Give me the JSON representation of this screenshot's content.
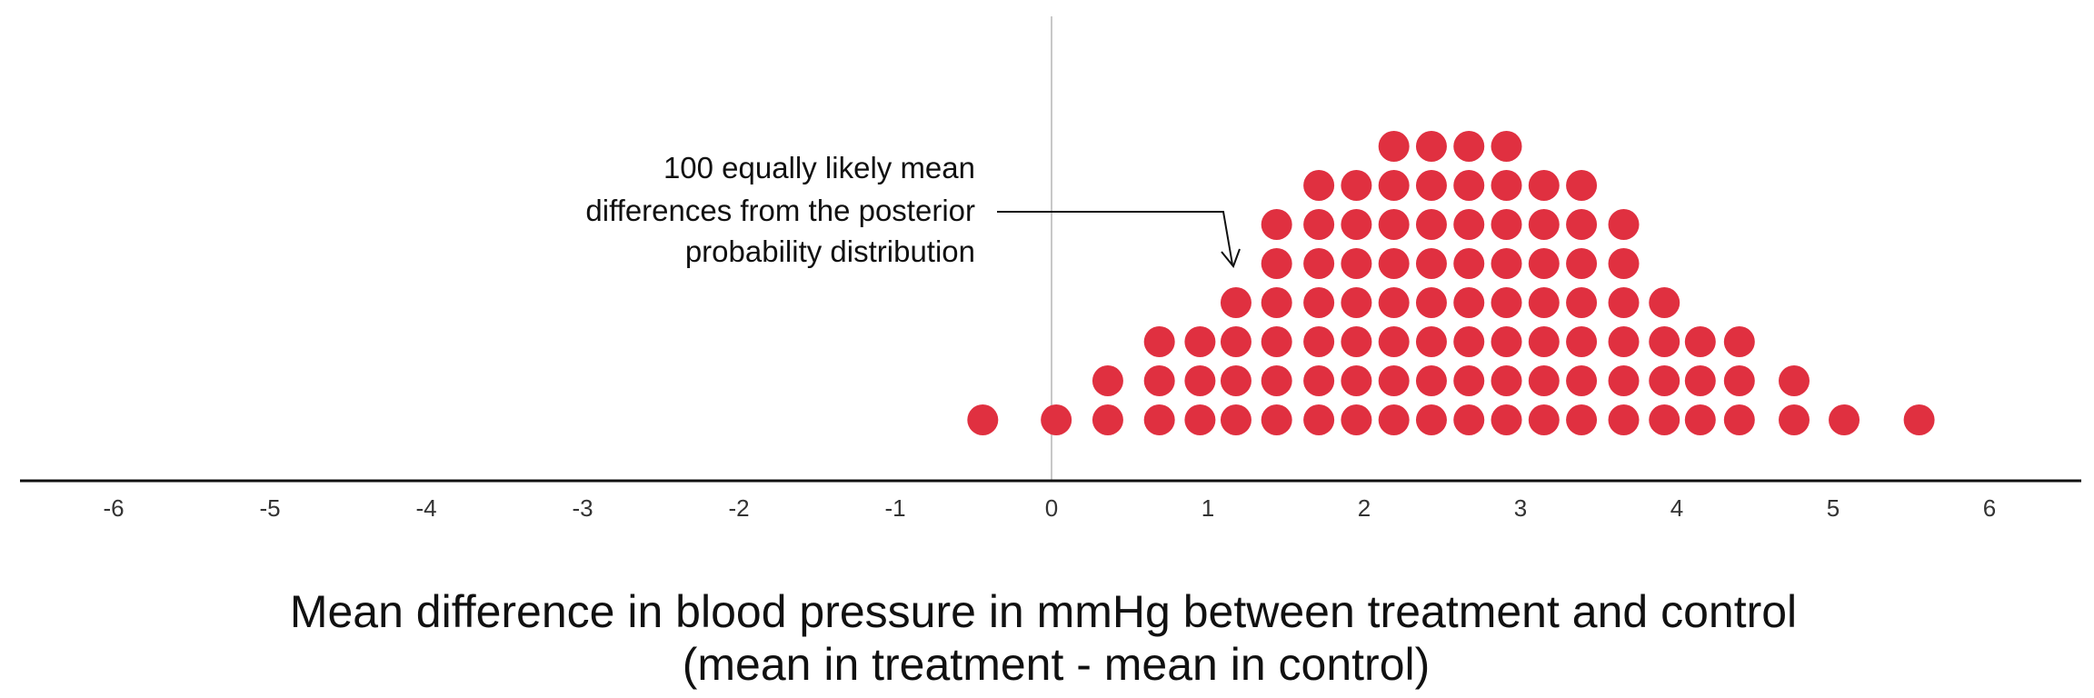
{
  "chart_data": {
    "type": "scatter",
    "subtype": "dot-plot (stacked dots, each dot = 1 of 100 posterior samples)",
    "title": "",
    "xlabel_lines": [
      "Mean difference in blood pressure in mmHg between treatment and control",
      "(mean in treatment - mean in control)"
    ],
    "ylabel": "",
    "xlim": [
      -6.6,
      6.65
    ],
    "x_ticks": [
      -6,
      -5,
      -4,
      -3,
      -2,
      -1,
      0,
      1,
      2,
      3,
      4,
      5,
      6
    ],
    "x_tick_labels": [
      "-6",
      "-5",
      "-4",
      "-3",
      "-2",
      "-1",
      "0",
      "1",
      "2",
      "3",
      "4",
      "5",
      "6"
    ],
    "reference_line_x": 0,
    "grid": false,
    "legend": "none",
    "annotation": {
      "text_lines": [
        "100 equally likely mean",
        "differences from the posterior",
        "probability distribution"
      ],
      "points_to": {
        "x": 1.2,
        "stack_level": 4
      }
    },
    "dot_color": "#e03040",
    "reference_line_color": "#c8c8c8",
    "axis_color": "#111111",
    "dots": {
      "description": "each column: x value (mmHg) and number of stacked dots",
      "columns": [
        {
          "x": -0.44,
          "count": 1
        },
        {
          "x": 0.03,
          "count": 1
        },
        {
          "x": 0.36,
          "count": 2
        },
        {
          "x": 0.69,
          "count": 3
        },
        {
          "x": 0.95,
          "count": 3
        },
        {
          "x": 1.18,
          "count": 4
        },
        {
          "x": 1.44,
          "count": 6
        },
        {
          "x": 1.71,
          "count": 7
        },
        {
          "x": 1.95,
          "count": 7
        },
        {
          "x": 2.19,
          "count": 8
        },
        {
          "x": 2.43,
          "count": 8
        },
        {
          "x": 2.67,
          "count": 8
        },
        {
          "x": 2.91,
          "count": 8
        },
        {
          "x": 3.15,
          "count": 7
        },
        {
          "x": 3.39,
          "count": 7
        },
        {
          "x": 3.66,
          "count": 6
        },
        {
          "x": 3.92,
          "count": 4
        },
        {
          "x": 4.15,
          "count": 3
        },
        {
          "x": 4.4,
          "count": 3
        },
        {
          "x": 4.75,
          "count": 2
        },
        {
          "x": 5.07,
          "count": 1
        },
        {
          "x": 5.55,
          "count": 1
        }
      ]
    }
  }
}
